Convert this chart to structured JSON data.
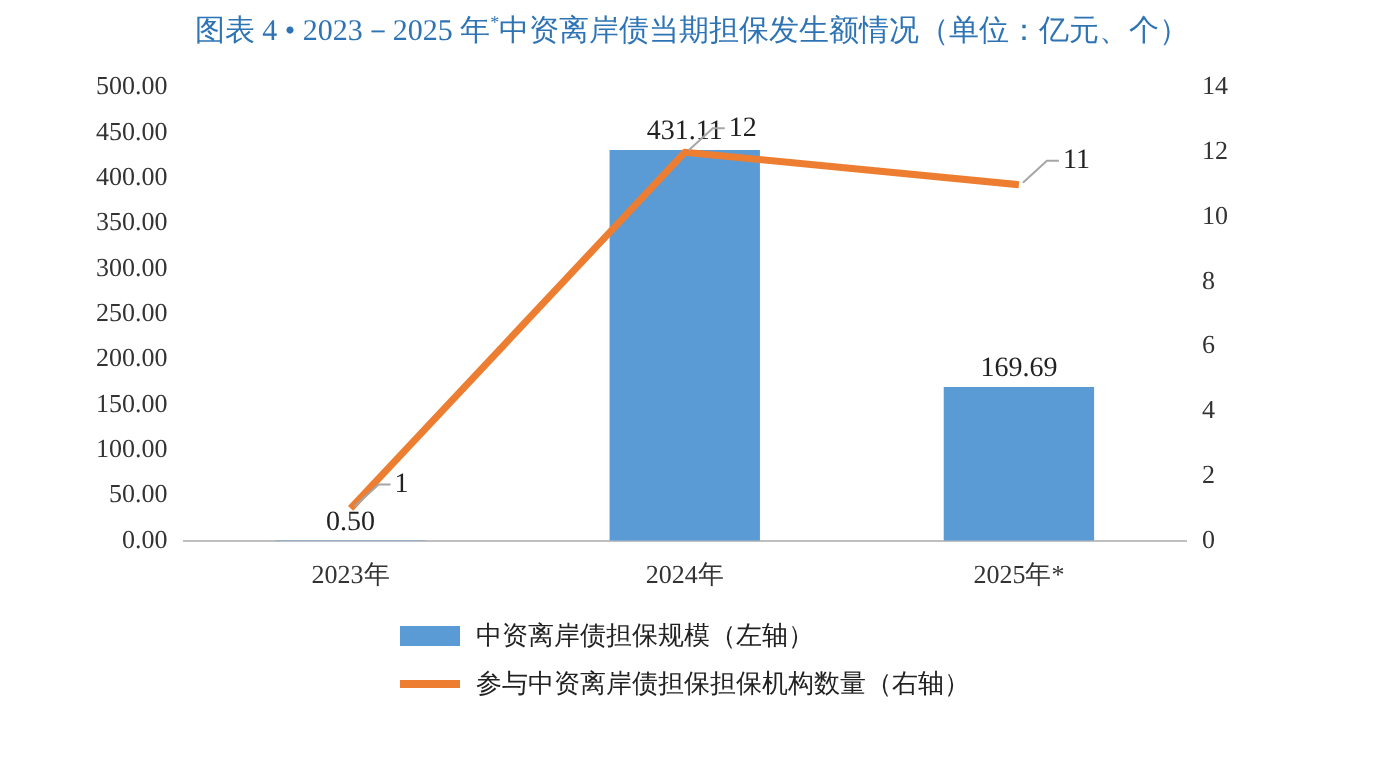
{
  "chart_data": {
    "type": "bar",
    "title": "图表 4 • 2023－2025 年$^{*}$中资离岸债当期担保发生额情况（单位：亿元、个）",
    "categories": [
      "2023年",
      "2024年",
      "2025年*"
    ],
    "series": [
      {
        "name": "中资离岸债担保规模（左轴）",
        "color": "#5b9bd5",
        "values": [
          0.5,
          431.11,
          169.69
        ],
        "value_labels": [
          "0.50",
          "431.11",
          "169.69"
        ]
      },
      {
        "name": "参与中资离岸债担保担保机构数量（右轴）",
        "type": "line",
        "axis": "y2",
        "color": "#ed7d31",
        "values": [
          1,
          12,
          11
        ],
        "value_labels": [
          "1",
          "12",
          "11"
        ]
      }
    ],
    "ylim": [
      0,
      500
    ],
    "yticks": [
      {
        "value": 0,
        "label": "0.00"
      },
      {
        "value": 50,
        "label": "50.00"
      },
      {
        "value": 100,
        "label": "100.00"
      },
      {
        "value": 150,
        "label": "150.00"
      },
      {
        "value": 200,
        "label": "200.00"
      },
      {
        "value": 250,
        "label": "250.00"
      },
      {
        "value": 300,
        "label": "300.00"
      },
      {
        "value": 350,
        "label": "350.00"
      },
      {
        "value": 400,
        "label": "400.00"
      },
      {
        "value": 450,
        "label": "450.00"
      },
      {
        "value": 500,
        "label": "500.00"
      }
    ],
    "y2lim": [
      0,
      14
    ],
    "y2ticks": [
      0,
      2,
      4,
      6,
      8,
      10,
      12,
      14
    ],
    "grid": false,
    "legend": "bottom",
    "marker": "none"
  }
}
